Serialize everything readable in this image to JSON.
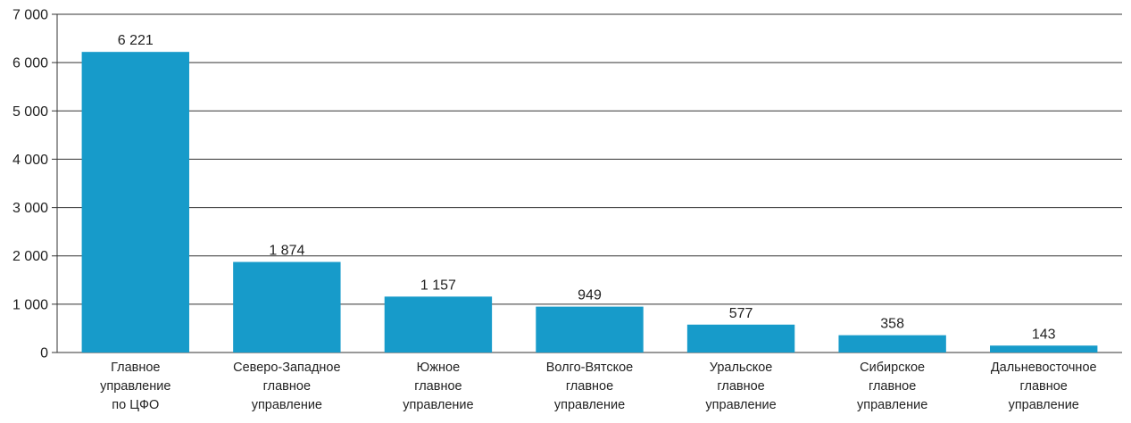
{
  "chart_data": {
    "type": "bar",
    "title": "",
    "xlabel": "",
    "ylabel": "",
    "categories": [
      [
        "Главное",
        "управление",
        "по ЦФО"
      ],
      [
        "Северо-Западное",
        "главное",
        "управление"
      ],
      [
        "Южное",
        "главное",
        "управление"
      ],
      [
        "Волго-Вятское",
        "главное",
        "управление"
      ],
      [
        "Уральское",
        "главное",
        "управление"
      ],
      [
        "Сибирское",
        "главное",
        "управление"
      ],
      [
        "Дальневосточное",
        "главное",
        "управление"
      ]
    ],
    "values": [
      6221,
      1874,
      1157,
      949,
      577,
      358,
      143
    ],
    "data_labels": [
      "6 221",
      "1 874",
      "1 157",
      "949",
      "577",
      "358",
      "143"
    ],
    "ylim": [
      0,
      7000
    ],
    "yticks": [
      0,
      1000,
      2000,
      3000,
      4000,
      5000,
      6000,
      7000
    ],
    "ytick_labels": [
      "0",
      "1 000",
      "2 000",
      "3 000",
      "4 000",
      "5 000",
      "6 000",
      "7 000"
    ],
    "grid": true,
    "legend": "none",
    "bar_color": "#179bca",
    "grid_color": "#333333"
  }
}
